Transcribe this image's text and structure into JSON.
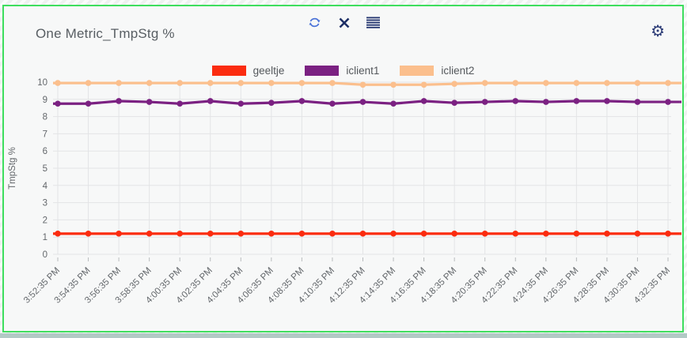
{
  "widget": {
    "title": "One Metric_TmpStg %",
    "icons": {
      "refresh": "refresh-circular-arrows",
      "close": "x-mark",
      "list": "stacked-lines-menu",
      "settings": "gear"
    }
  },
  "colors": {
    "panel_border": "#3ede5e",
    "panel_background": "#f7f8f8",
    "icon_blue": "#4a72d8",
    "icon_navy": "#1d2f66",
    "grid": "#e3e4e6",
    "tick_text": "#63676b",
    "title_text": "#585e63"
  },
  "chart_data": {
    "type": "line",
    "title": "One Metric_TmpStg %",
    "xlabel": "",
    "ylabel": "TmpStg %",
    "ylim": [
      0,
      10
    ],
    "yticks": [
      0,
      1,
      2,
      3,
      4,
      5,
      6,
      7,
      8,
      9,
      10
    ],
    "grid": true,
    "legend_position": "top",
    "categories": [
      "3:52:35 PM",
      "3:54:35 PM",
      "3:56:35 PM",
      "3:58:35 PM",
      "4:00:35 PM",
      "4:02:35 PM",
      "4:04:35 PM",
      "4:06:35 PM",
      "4:08:35 PM",
      "4:10:35 PM",
      "4:12:35 PM",
      "4:14:35 PM",
      "4:16:35 PM",
      "4:18:35 PM",
      "4:20:35 PM",
      "4:22:35 PM",
      "4:24:35 PM",
      "4:26:35 PM",
      "4:28:35 PM",
      "4:30:35 PM",
      "4:32:35 PM"
    ],
    "series": [
      {
        "name": "geeltje",
        "color": "#fb2c10",
        "values": [
          1.2,
          1.2,
          1.2,
          1.2,
          1.2,
          1.2,
          1.2,
          1.2,
          1.2,
          1.2,
          1.2,
          1.2,
          1.2,
          1.2,
          1.2,
          1.2,
          1.2,
          1.2,
          1.2,
          1.2,
          1.2
        ]
      },
      {
        "name": "iclient1",
        "color": "#7b2182",
        "values": [
          8.75,
          8.75,
          8.9,
          8.85,
          8.75,
          8.9,
          8.75,
          8.8,
          8.9,
          8.75,
          8.85,
          8.75,
          8.9,
          8.8,
          8.85,
          8.9,
          8.85,
          8.9,
          8.9,
          8.85,
          8.85
        ]
      },
      {
        "name": "iclient2",
        "color": "#fbbf8d",
        "values": [
          9.95,
          9.95,
          9.95,
          9.95,
          9.95,
          9.95,
          9.95,
          9.95,
          9.95,
          9.95,
          9.85,
          9.85,
          9.85,
          9.9,
          9.95,
          9.95,
          9.95,
          9.95,
          9.95,
          9.95,
          9.95
        ]
      }
    ]
  }
}
